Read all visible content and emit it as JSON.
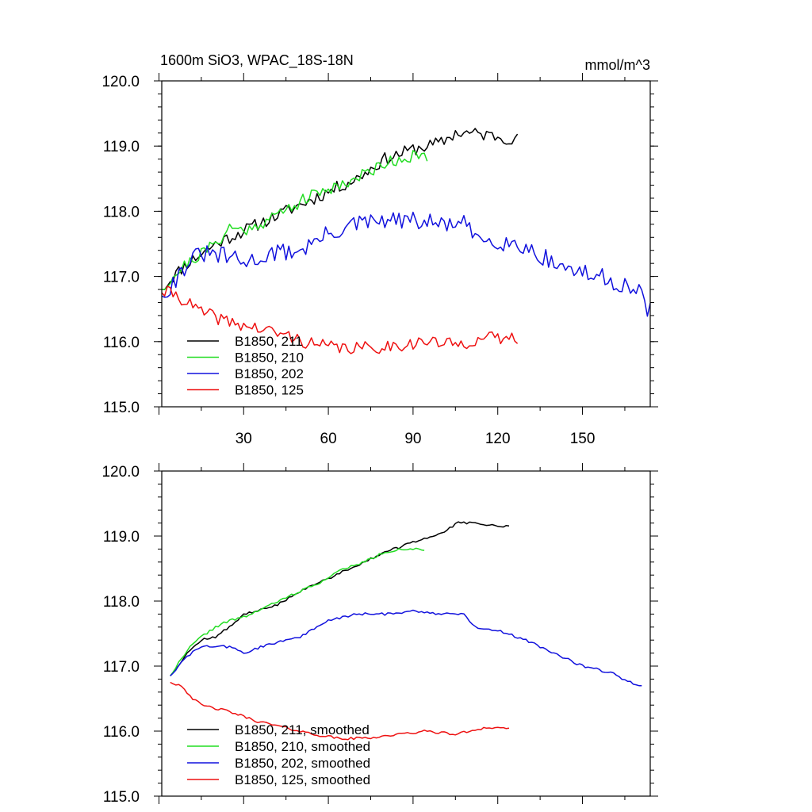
{
  "figure": {
    "title": "1600m SiO3, WPAC_18S-18N",
    "units": "mmol/m^3"
  },
  "colors": {
    "B1850, 211": "#000000",
    "B1850, 210": "#22dd22",
    "B1850, 202": "#1111dd",
    "B1850, 125": "#ee1111"
  },
  "chart_data": [
    {
      "type": "line",
      "title": "1600m SiO3, WPAC_18S-18N",
      "units_label": "mmol/m^3",
      "xlabel": "",
      "ylabel": "",
      "xlim": [
        1,
        174
      ],
      "ylim": [
        115,
        120
      ],
      "xticks": [
        30,
        60,
        90,
        120,
        150
      ],
      "xtick_labels": [
        "30",
        "60",
        "90",
        "120",
        "150"
      ],
      "yticks": [
        115,
        116,
        117,
        118,
        119,
        120
      ],
      "ytick_labels": [
        "115.0",
        "116.0",
        "117.0",
        "118.0",
        "119.0",
        "120.0"
      ],
      "legend_position": "bottom-left",
      "series": [
        {
          "name": "B1850, 211",
          "style": "raw",
          "anchors": [
            [
              1,
              116.8
            ],
            [
              5,
              117.0
            ],
            [
              10,
              117.2
            ],
            [
              20,
              117.5
            ],
            [
              30,
              117.7
            ],
            [
              40,
              117.9
            ],
            [
              50,
              118.1
            ],
            [
              60,
              118.3
            ],
            [
              70,
              118.5
            ],
            [
              80,
              118.8
            ],
            [
              90,
              118.95
            ],
            [
              100,
              119.05
            ],
            [
              105,
              119.2
            ],
            [
              110,
              119.2
            ],
            [
              120,
              119.15
            ],
            [
              127,
              119.1
            ]
          ],
          "noise": 0.1,
          "seed": 11
        },
        {
          "name": "B1850, 210",
          "style": "raw",
          "anchors": [
            [
              1,
              116.8
            ],
            [
              5,
              117.0
            ],
            [
              10,
              117.2
            ],
            [
              20,
              117.5
            ],
            [
              25,
              117.75
            ],
            [
              30,
              117.7
            ],
            [
              40,
              117.9
            ],
            [
              50,
              118.15
            ],
            [
              60,
              118.35
            ],
            [
              70,
              118.5
            ],
            [
              80,
              118.75
            ],
            [
              90,
              118.85
            ],
            [
              95,
              118.8
            ]
          ],
          "noise": 0.1,
          "seed": 21
        },
        {
          "name": "B1850, 202",
          "style": "raw",
          "anchors": [
            [
              1,
              116.7
            ],
            [
              5,
              116.9
            ],
            [
              10,
              117.2
            ],
            [
              15,
              117.35
            ],
            [
              25,
              117.3
            ],
            [
              30,
              117.2
            ],
            [
              40,
              117.35
            ],
            [
              50,
              117.4
            ],
            [
              60,
              117.65
            ],
            [
              70,
              117.8
            ],
            [
              80,
              117.85
            ],
            [
              90,
              117.85
            ],
            [
              100,
              117.8
            ],
            [
              108,
              117.8
            ],
            [
              112,
              117.6
            ],
            [
              120,
              117.55
            ],
            [
              130,
              117.45
            ],
            [
              140,
              117.2
            ],
            [
              150,
              117.05
            ],
            [
              160,
              116.95
            ],
            [
              170,
              116.75
            ],
            [
              174,
              116.45
            ]
          ],
          "noise": 0.14,
          "seed": 31
        },
        {
          "name": "B1850, 125",
          "style": "raw",
          "anchors": [
            [
              1,
              116.75
            ],
            [
              5,
              116.75
            ],
            [
              10,
              116.6
            ],
            [
              15,
              116.45
            ],
            [
              25,
              116.3
            ],
            [
              35,
              116.2
            ],
            [
              45,
              116.1
            ],
            [
              55,
              115.95
            ],
            [
              65,
              115.9
            ],
            [
              75,
              115.9
            ],
            [
              85,
              115.95
            ],
            [
              95,
              116.0
            ],
            [
              105,
              115.95
            ],
            [
              115,
              116.05
            ],
            [
              127,
              116.05
            ]
          ],
          "noise": 0.1,
          "seed": 41
        }
      ],
      "legend": [
        {
          "label": "B1850, 211",
          "color": "#000000"
        },
        {
          "label": "B1850, 210",
          "color": "#22dd22"
        },
        {
          "label": "B1850, 202",
          "color": "#1111dd"
        },
        {
          "label": "B1850, 125",
          "color": "#ee1111"
        }
      ]
    },
    {
      "type": "line",
      "title": "",
      "xlabel": "",
      "ylabel": "",
      "xlim": [
        1,
        174
      ],
      "ylim": [
        115,
        120
      ],
      "xticks": [
        30,
        60,
        90,
        120,
        150
      ],
      "xtick_labels": [],
      "yticks": [
        115,
        116,
        117,
        118,
        119,
        120
      ],
      "ytick_labels": [
        "115.0",
        "116.0",
        "117.0",
        "118.0",
        "119.0",
        "120.0"
      ],
      "legend_position": "bottom-left",
      "series": [
        {
          "name": "B1850, 211, smoothed",
          "style": "smoothed",
          "anchors": [
            [
              4,
              116.85
            ],
            [
              10,
              117.2
            ],
            [
              15,
              117.4
            ],
            [
              20,
              117.45
            ],
            [
              25,
              117.6
            ],
            [
              30,
              117.8
            ],
            [
              35,
              117.85
            ],
            [
              40,
              117.9
            ],
            [
              50,
              118.15
            ],
            [
              60,
              118.35
            ],
            [
              70,
              118.55
            ],
            [
              80,
              118.75
            ],
            [
              90,
              118.9
            ],
            [
              100,
              119.05
            ],
            [
              106,
              119.2
            ],
            [
              110,
              119.2
            ],
            [
              120,
              119.15
            ],
            [
              124,
              119.15
            ]
          ],
          "noise": 0.02,
          "seed": 12
        },
        {
          "name": "B1850, 210, smoothed",
          "style": "smoothed",
          "anchors": [
            [
              4,
              116.85
            ],
            [
              10,
              117.25
            ],
            [
              15,
              117.45
            ],
            [
              20,
              117.6
            ],
            [
              25,
              117.7
            ],
            [
              30,
              117.75
            ],
            [
              40,
              117.95
            ],
            [
              50,
              118.15
            ],
            [
              60,
              118.35
            ],
            [
              65,
              118.5
            ],
            [
              70,
              118.55
            ],
            [
              80,
              118.75
            ],
            [
              85,
              118.8
            ],
            [
              90,
              118.8
            ],
            [
              94,
              118.78
            ]
          ],
          "noise": 0.02,
          "seed": 22
        },
        {
          "name": "B1850, 202, smoothed",
          "style": "smoothed",
          "anchors": [
            [
              4,
              116.85
            ],
            [
              10,
              117.15
            ],
            [
              15,
              117.3
            ],
            [
              20,
              117.3
            ],
            [
              25,
              117.3
            ],
            [
              30,
              117.2
            ],
            [
              40,
              117.35
            ],
            [
              50,
              117.45
            ],
            [
              60,
              117.7
            ],
            [
              70,
              117.8
            ],
            [
              80,
              117.8
            ],
            [
              90,
              117.85
            ],
            [
              100,
              117.8
            ],
            [
              108,
              117.8
            ],
            [
              112,
              117.6
            ],
            [
              120,
              117.55
            ],
            [
              130,
              117.4
            ],
            [
              140,
              117.2
            ],
            [
              150,
              117.0
            ],
            [
              160,
              116.9
            ],
            [
              167,
              116.75
            ],
            [
              171,
              116.7
            ]
          ],
          "noise": 0.02,
          "seed": 32
        },
        {
          "name": "B1850, 125, smoothed",
          "style": "smoothed",
          "anchors": [
            [
              4,
              116.75
            ],
            [
              8,
              116.7
            ],
            [
              12,
              116.5
            ],
            [
              15,
              116.4
            ],
            [
              25,
              116.3
            ],
            [
              35,
              116.15
            ],
            [
              45,
              116.05
            ],
            [
              55,
              115.95
            ],
            [
              65,
              115.88
            ],
            [
              75,
              115.9
            ],
            [
              85,
              115.95
            ],
            [
              95,
              116.0
            ],
            [
              105,
              115.95
            ],
            [
              115,
              116.05
            ],
            [
              124,
              116.05
            ]
          ],
          "noise": 0.02,
          "seed": 42
        }
      ],
      "legend": [
        {
          "label": "B1850, 211, smoothed",
          "color": "#000000"
        },
        {
          "label": "B1850, 210, smoothed",
          "color": "#22dd22"
        },
        {
          "label": "B1850, 202, smoothed",
          "color": "#1111dd"
        },
        {
          "label": "B1850, 125, smoothed",
          "color": "#ee1111"
        }
      ]
    }
  ]
}
